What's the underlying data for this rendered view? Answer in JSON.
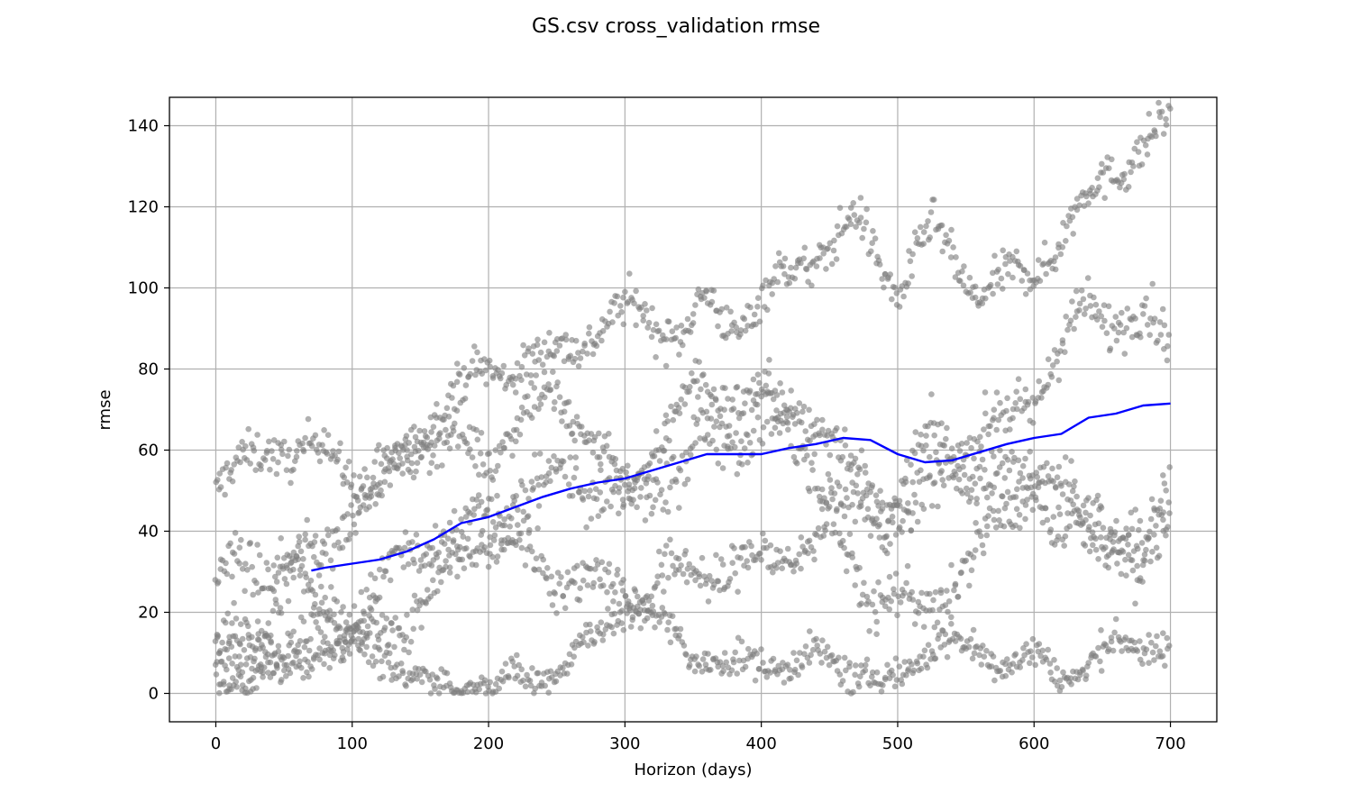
{
  "chart_data": {
    "type": "scatter",
    "title": "GS.csv cross_validation rmse",
    "xlabel": "Horizon (days)",
    "ylabel": "rmse",
    "xlim": [
      -34,
      734
    ],
    "ylim": [
      -7,
      147
    ],
    "xticks": [
      0,
      100,
      200,
      300,
      400,
      500,
      600,
      700
    ],
    "yticks": [
      0,
      20,
      40,
      60,
      80,
      100,
      120,
      140
    ],
    "grid": true,
    "legend": "none",
    "colors": {
      "points": "#808080",
      "line": "#0000ff",
      "grid": "#b0b0b0"
    },
    "series": [
      {
        "kind": "points",
        "bands": [
          {
            "x": [
              0,
              40,
              60,
              80,
              120,
              160,
              200,
              240,
              280,
              310,
              340,
              360,
              380,
              400,
              430,
              470,
              500,
              525,
              560,
              600,
              640,
              660,
              700
            ],
            "y": [
              50,
              62,
              58,
              61,
              48,
              70,
              80,
              82,
              90,
              95,
              88,
              96,
              91,
              97,
              106,
              116,
              100,
              114,
              99,
              104,
              122,
              130,
              140
            ],
            "spread": 5
          },
          {
            "x": [
              0,
              20,
              60,
              100,
              150,
              200,
              250,
              300,
              350,
              400,
              430,
              460,
              500,
              525,
              560,
              600,
              640,
              680,
              700
            ],
            "y": [
              26,
              33,
              30,
              45,
              63,
              60,
              75,
              50,
              75,
              72,
              71,
              58,
              45,
              63,
              62,
              74,
              95,
              92,
              86
            ],
            "spread": 6
          },
          {
            "x": [
              0,
              30,
              60,
              100,
              150,
              200,
              230,
              260,
              300,
              350,
              400,
              450,
              480,
              520,
              560,
              600,
              640,
              680,
              700
            ],
            "y": [
              12,
              14,
              12,
              20,
              35,
              42,
              50,
              55,
              45,
              60,
              68,
              52,
              40,
              50,
              55,
              50,
              40,
              33,
              40
            ],
            "spread": 7
          },
          {
            "x": [
              0,
              30,
              60,
              100,
              150,
              200,
              250,
              300,
              350,
              400,
              450,
              480,
              520,
              560,
              600,
              640,
              680,
              700
            ],
            "y": [
              8,
              12,
              30,
              12,
              22,
              40,
              30,
              25,
              30,
              32,
              40,
              25,
              20,
              35,
              55,
              42,
              35,
              55
            ],
            "spread": 6
          },
          {
            "x": [
              0,
              40,
              80,
              120,
              150,
              200,
              220,
              260,
              300,
              320,
              350,
              380,
              400,
              450,
              500,
              530,
              560,
              600,
              620,
              650,
              680,
              700
            ],
            "y": [
              3,
              5,
              12,
              10,
              2,
              1,
              3,
              8,
              22,
              18,
              10,
              6,
              8,
              8,
              2,
              15,
              8,
              10,
              2,
              12,
              10,
              14
            ],
            "spread": 4
          }
        ]
      },
      {
        "kind": "line",
        "x": [
          70,
          80,
          100,
          120,
          140,
          160,
          180,
          200,
          220,
          240,
          260,
          280,
          300,
          320,
          340,
          360,
          380,
          400,
          420,
          440,
          460,
          480,
          500,
          520,
          540,
          560,
          580,
          600,
          620,
          640,
          660,
          680,
          700
        ],
        "y": [
          30.3,
          31,
          32,
          33,
          35,
          38,
          42,
          43.5,
          46,
          48.5,
          50.5,
          52,
          53,
          55,
          57,
          59,
          59,
          59,
          60.5,
          61.5,
          63,
          62.5,
          59,
          57,
          57.5,
          59.5,
          61.5,
          63,
          64,
          68,
          69,
          71,
          71.5
        ]
      }
    ]
  }
}
